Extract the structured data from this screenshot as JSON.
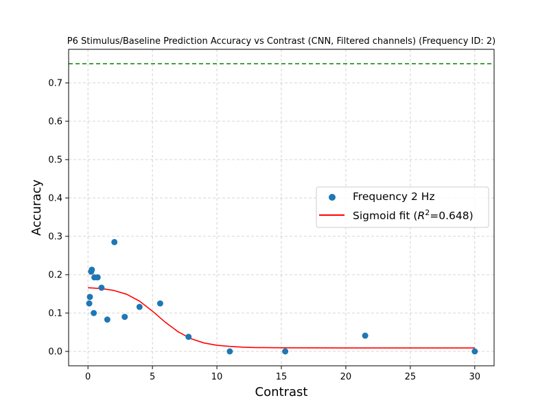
{
  "chart_data": {
    "type": "scatter",
    "title": "P6 Stimulus/Baseline Prediction Accuracy vs Contrast (CNN, Filtered channels) (Frequency ID: 2)",
    "xlabel": "Contrast",
    "ylabel": "Accuracy",
    "xlim": [
      -1.5,
      31.5
    ],
    "ylim": [
      -0.0375,
      0.7875
    ],
    "xticks": [
      0,
      5,
      10,
      15,
      20,
      25,
      30
    ],
    "yticks": [
      0.0,
      0.1,
      0.2,
      0.3,
      0.4,
      0.5,
      0.6,
      0.7
    ],
    "grid": true,
    "legend_position": "center-right",
    "series": [
      {
        "name": "Frequency 2 Hz",
        "kind": "scatter",
        "color": "#1f77b4",
        "x": [
          0.1,
          0.15,
          0.25,
          0.3,
          0.45,
          0.5,
          0.75,
          1.05,
          1.5,
          2.05,
          2.85,
          4.0,
          5.6,
          7.8,
          11.0,
          15.3,
          21.5,
          30.0
        ],
        "y": [
          0.125,
          0.142,
          0.208,
          0.213,
          0.1,
          0.193,
          0.193,
          0.166,
          0.083,
          0.285,
          0.09,
          0.116,
          0.125,
          0.038,
          0.0,
          0.0,
          0.041,
          0.0
        ]
      },
      {
        "name": "Sigmoid fit ($R^2$=0.648)",
        "legend_prefix": "Sigmoid fit (",
        "legend_r2_var": "R",
        "legend_r2_exp": "2",
        "legend_suffix": "=0.648)",
        "kind": "line",
        "color": "#ff0000",
        "x": [
          0.0,
          1.0,
          2.0,
          3.0,
          4.0,
          5.0,
          6.0,
          7.0,
          8.0,
          9.0,
          10.0,
          11.0,
          12.0,
          13.0,
          15.0,
          20.0,
          25.0,
          30.0
        ],
        "y": [
          0.166,
          0.164,
          0.159,
          0.149,
          0.131,
          0.105,
          0.076,
          0.051,
          0.033,
          0.022,
          0.016,
          0.013,
          0.011,
          0.01,
          0.0095,
          0.009,
          0.009,
          0.009
        ]
      }
    ],
    "reference_line": {
      "y": 0.75,
      "color": "#008000",
      "style": "dashed"
    }
  }
}
